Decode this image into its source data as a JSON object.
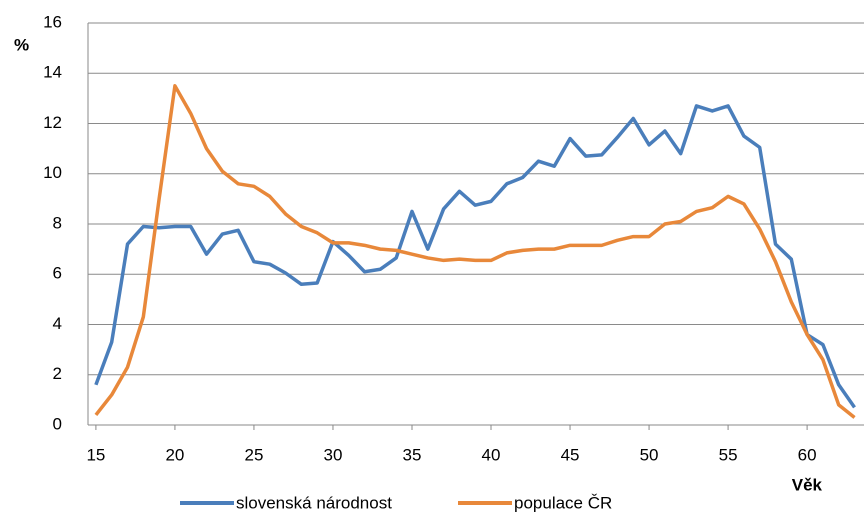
{
  "chart_data": {
    "type": "line",
    "y_label": "%",
    "x_label": "Věk",
    "x": [
      15,
      16,
      17,
      18,
      19,
      20,
      21,
      22,
      23,
      24,
      25,
      26,
      27,
      28,
      29,
      30,
      31,
      32,
      33,
      34,
      35,
      36,
      37,
      38,
      39,
      40,
      41,
      42,
      43,
      44,
      45,
      46,
      47,
      48,
      49,
      50,
      51,
      52,
      53,
      54,
      55,
      56,
      57,
      58,
      59,
      60,
      61,
      62,
      63
    ],
    "series": [
      {
        "name": "slovenská národnost",
        "color": "#4a7ebb",
        "values": [
          1.6,
          3.3,
          7.2,
          7.9,
          7.85,
          7.9,
          7.9,
          6.8,
          7.6,
          7.75,
          6.5,
          6.4,
          6.05,
          5.6,
          5.65,
          7.3,
          6.75,
          6.1,
          6.2,
          6.65,
          8.5,
          7.0,
          8.6,
          9.3,
          8.75,
          8.9,
          9.6,
          9.85,
          10.5,
          10.3,
          11.4,
          10.7,
          10.75,
          11.45,
          12.2,
          11.15,
          11.7,
          10.8,
          12.7,
          12.5,
          12.7,
          11.5,
          11.05,
          7.2,
          6.6,
          3.6,
          3.2,
          1.6,
          0.7
        ]
      },
      {
        "name": "populace ČR",
        "color": "#e8883a",
        "values": [
          0.4,
          1.2,
          2.3,
          4.3,
          9.0,
          13.5,
          12.4,
          11.0,
          10.1,
          9.6,
          9.5,
          9.1,
          8.4,
          7.9,
          7.65,
          7.25,
          7.25,
          7.15,
          7.0,
          6.95,
          6.8,
          6.65,
          6.55,
          6.6,
          6.55,
          6.55,
          6.85,
          6.95,
          7.0,
          7.0,
          7.15,
          7.15,
          7.15,
          7.35,
          7.5,
          7.5,
          8.0,
          8.1,
          8.5,
          8.65,
          9.1,
          8.8,
          7.8,
          6.5,
          4.9,
          3.6,
          2.6,
          0.8,
          0.3
        ]
      }
    ],
    "xlim": [
      14.5,
      63.6
    ],
    "xticks": [
      15,
      20,
      25,
      30,
      35,
      40,
      45,
      50,
      55,
      60
    ],
    "ylim": [
      0,
      16
    ],
    "yticks": [
      0,
      2,
      4,
      6,
      8,
      10,
      12,
      14,
      16
    ],
    "grid": true,
    "legend": "bottom"
  }
}
